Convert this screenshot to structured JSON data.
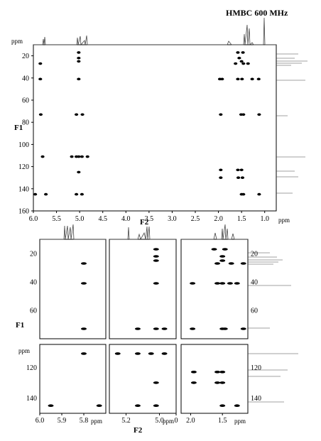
{
  "title": "HMBC 600 MHz",
  "units": {
    "ppm": "ppm"
  },
  "axis_labels": {
    "f1": "F1",
    "f2": "F2"
  },
  "top_plot": {
    "x_ticks": [
      "6.0",
      "5.5",
      "5.0",
      "4.5",
      "4.0",
      "3.5",
      "3.0",
      "2.5",
      "2.0",
      "1.5",
      "1.0"
    ],
    "y_ticks": [
      "20",
      "40",
      "60",
      "80",
      "100",
      "120",
      "140",
      "160"
    ]
  },
  "bottom_panels": {
    "y_ticks_top": [
      "20",
      "40",
      "60"
    ],
    "y_ticks_bottom": [
      "120",
      "140"
    ],
    "panel_a_x_ticks": [
      "6.0",
      "5.9",
      "5.8"
    ],
    "panel_b_x_ticks": [
      "5.2",
      "5.0",
      "0"
    ],
    "panel_b_x_tick_overlap": "5.0",
    "panel_c_x_ticks": [
      "2.0",
      "1.5"
    ]
  },
  "chart_data": [
    {
      "type": "scatter",
      "title": "HMBC 600 MHz",
      "xlabel": "F2",
      "ylabel": "F1",
      "x_unit": "ppm",
      "y_unit": "ppm",
      "xlim": [
        6.0,
        0.75
      ],
      "ylim": [
        160,
        10
      ],
      "x_reversed": true,
      "y_reversed": true,
      "grid": false,
      "points": [
        {
          "x": 5.85,
          "y": 27
        },
        {
          "x": 5.85,
          "y": 41
        },
        {
          "x": 5.84,
          "y": 73
        },
        {
          "x": 5.8,
          "y": 111
        },
        {
          "x": 5.96,
          "y": 145
        },
        {
          "x": 5.73,
          "y": 145
        },
        {
          "x": 5.02,
          "y": 17
        },
        {
          "x": 5.02,
          "y": 22
        },
        {
          "x": 5.02,
          "y": 25
        },
        {
          "x": 5.02,
          "y": 41
        },
        {
          "x": 5.02,
          "y": 111
        },
        {
          "x": 5.02,
          "y": 125
        },
        {
          "x": 5.07,
          "y": 73
        },
        {
          "x": 4.94,
          "y": 73
        },
        {
          "x": 5.07,
          "y": 111
        },
        {
          "x": 4.95,
          "y": 111
        },
        {
          "x": 4.83,
          "y": 111
        },
        {
          "x": 5.07,
          "y": 145
        },
        {
          "x": 4.95,
          "y": 145
        },
        {
          "x": 5.17,
          "y": 111
        },
        {
          "x": 1.97,
          "y": 41
        },
        {
          "x": 1.92,
          "y": 41
        },
        {
          "x": 1.95,
          "y": 73
        },
        {
          "x": 1.95,
          "y": 123
        },
        {
          "x": 1.95,
          "y": 130
        },
        {
          "x": 1.58,
          "y": 17
        },
        {
          "x": 1.47,
          "y": 17
        },
        {
          "x": 1.55,
          "y": 22
        },
        {
          "x": 1.5,
          "y": 25
        },
        {
          "x": 1.46,
          "y": 27
        },
        {
          "x": 1.63,
          "y": 27
        },
        {
          "x": 1.36,
          "y": 27
        },
        {
          "x": 1.58,
          "y": 41
        },
        {
          "x": 1.49,
          "y": 41
        },
        {
          "x": 1.27,
          "y": 41
        },
        {
          "x": 1.13,
          "y": 41
        },
        {
          "x": 1.51,
          "y": 73
        },
        {
          "x": 1.46,
          "y": 73
        },
        {
          "x": 1.12,
          "y": 73
        },
        {
          "x": 1.58,
          "y": 123
        },
        {
          "x": 1.5,
          "y": 123
        },
        {
          "x": 1.57,
          "y": 130
        },
        {
          "x": 1.48,
          "y": 130
        },
        {
          "x": 1.5,
          "y": 145
        },
        {
          "x": 1.46,
          "y": 145
        },
        {
          "x": 1.12,
          "y": 145
        }
      ]
    },
    {
      "type": "scatter",
      "xlim": [
        6.0,
        5.7
      ],
      "ylim": [
        80,
        10
      ],
      "points": [
        {
          "x": 5.8,
          "y": 27
        },
        {
          "x": 5.8,
          "y": 41
        },
        {
          "x": 5.8,
          "y": 73
        }
      ]
    },
    {
      "type": "scatter",
      "xlim": [
        5.3,
        4.9
      ],
      "ylim": [
        80,
        10
      ],
      "points": [
        {
          "x": 5.02,
          "y": 17
        },
        {
          "x": 5.02,
          "y": 22
        },
        {
          "x": 5.02,
          "y": 25
        },
        {
          "x": 5.02,
          "y": 41
        },
        {
          "x": 5.13,
          "y": 73
        },
        {
          "x": 5.02,
          "y": 73
        },
        {
          "x": 4.97,
          "y": 73
        }
      ]
    },
    {
      "type": "scatter",
      "xlim": [
        2.15,
        1.1
      ],
      "ylim": [
        80,
        10
      ],
      "points": [
        {
          "x": 1.97,
          "y": 41
        },
        {
          "x": 1.58,
          "y": 41
        },
        {
          "x": 1.5,
          "y": 41
        },
        {
          "x": 1.38,
          "y": 41
        },
        {
          "x": 1.27,
          "y": 41
        },
        {
          "x": 1.63,
          "y": 17
        },
        {
          "x": 1.46,
          "y": 17
        },
        {
          "x": 1.5,
          "y": 22
        },
        {
          "x": 1.5,
          "y": 25
        },
        {
          "x": 1.58,
          "y": 27
        },
        {
          "x": 1.36,
          "y": 27
        },
        {
          "x": 1.17,
          "y": 27
        },
        {
          "x": 1.97,
          "y": 73
        },
        {
          "x": 1.5,
          "y": 73
        },
        {
          "x": 1.46,
          "y": 73
        },
        {
          "x": 1.17,
          "y": 73
        }
      ]
    },
    {
      "type": "scatter",
      "xlim": [
        6.0,
        5.7
      ],
      "ylim": [
        150,
        105
      ],
      "points": [
        {
          "x": 5.8,
          "y": 111
        },
        {
          "x": 5.95,
          "y": 145
        },
        {
          "x": 5.73,
          "y": 145
        }
      ]
    },
    {
      "type": "scatter",
      "xlim": [
        5.3,
        4.9
      ],
      "ylim": [
        150,
        105
      ],
      "points": [
        {
          "x": 5.25,
          "y": 111
        },
        {
          "x": 5.13,
          "y": 111
        },
        {
          "x": 5.05,
          "y": 111
        },
        {
          "x": 4.97,
          "y": 111
        },
        {
          "x": 5.02,
          "y": 130
        },
        {
          "x": 5.13,
          "y": 145
        },
        {
          "x": 5.02,
          "y": 145
        }
      ]
    },
    {
      "type": "scatter",
      "xlim": [
        2.15,
        1.1
      ],
      "ylim": [
        150,
        105
      ],
      "points": [
        {
          "x": 1.95,
          "y": 123
        },
        {
          "x": 1.58,
          "y": 123
        },
        {
          "x": 1.5,
          "y": 123
        },
        {
          "x": 1.95,
          "y": 130
        },
        {
          "x": 1.58,
          "y": 130
        },
        {
          "x": 1.5,
          "y": 130
        },
        {
          "x": 1.5,
          "y": 145
        },
        {
          "x": 1.27,
          "y": 145
        }
      ]
    }
  ]
}
